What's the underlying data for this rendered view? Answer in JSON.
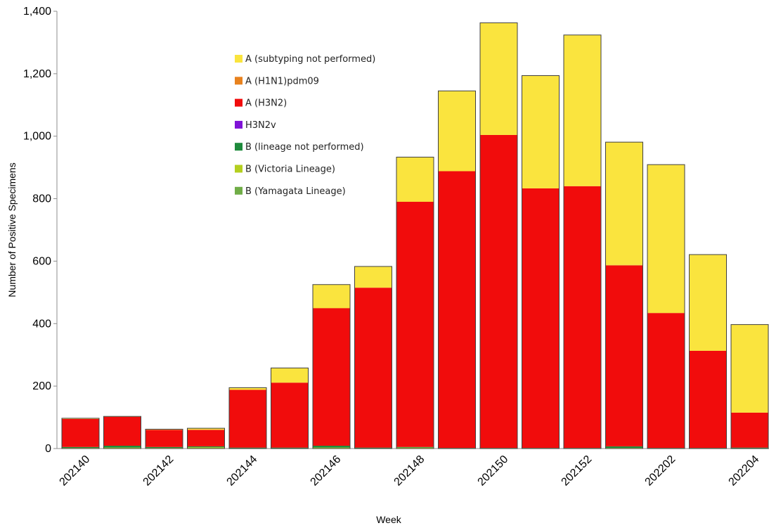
{
  "chart_data": {
    "type": "bar",
    "stacked": true,
    "title": "",
    "xlabel": "Week",
    "ylabel": "Number of Positive Specimens",
    "ylim": [
      0,
      1400
    ],
    "yticks": [
      "0",
      "200",
      "400",
      "600",
      "800",
      "1,000",
      "1,200",
      "1,400"
    ],
    "grid": false,
    "legend_position": "top-left inside plot",
    "categories": [
      "202140",
      "202141",
      "202142",
      "202143",
      "202144",
      "202145",
      "202146",
      "202147",
      "202148",
      "202149",
      "202150",
      "202151",
      "202152",
      "202201",
      "202202",
      "202203",
      "202204"
    ],
    "x_tick_labels": [
      "202140",
      "",
      "202142",
      "",
      "202144",
      "",
      "202146",
      "",
      "202148",
      "",
      "202150",
      "",
      "202152",
      "",
      "202202",
      "",
      "202204"
    ],
    "series": [
      {
        "name": "B (Yamagata Lineage)",
        "color": "#70AD47",
        "values": [
          0,
          0,
          0,
          0,
          0,
          0,
          0,
          0,
          0,
          0,
          0,
          0,
          0,
          0,
          0,
          0,
          0
        ]
      },
      {
        "name": "B (Victoria Lineage)",
        "color": "#B4CF1F",
        "values": [
          2,
          3,
          2,
          4,
          1,
          1,
          3,
          1,
          3,
          1,
          1,
          1,
          1,
          2,
          1,
          1,
          1
        ]
      },
      {
        "name": "B (lineage not performed)",
        "color": "#1E8A3C",
        "values": [
          3,
          6,
          3,
          3,
          2,
          2,
          6,
          2,
          2,
          1,
          1,
          1,
          1,
          5,
          1,
          1,
          2
        ]
      },
      {
        "name": "H3N2v",
        "color": "#7F12D6",
        "values": [
          0,
          0,
          0,
          0,
          0,
          0,
          0,
          0,
          0,
          0,
          0,
          0,
          0,
          0,
          0,
          0,
          0
        ]
      },
      {
        "name": "A (H3N2)",
        "color": "#F10C0C",
        "values": [
          90,
          93,
          55,
          53,
          185,
          208,
          440,
          512,
          785,
          886,
          1002,
          831,
          838,
          579,
          432,
          311,
          112
        ]
      },
      {
        "name": "A (H1N1)pdm09",
        "color": "#E8821E",
        "values": [
          0,
          0,
          0,
          0,
          0,
          0,
          1,
          0,
          0,
          0,
          0,
          0,
          0,
          2,
          0,
          0,
          0
        ]
      },
      {
        "name": "A (subtyping not performed)",
        "color": "#FAE43E",
        "values": [
          2,
          1,
          2,
          5,
          7,
          47,
          75,
          68,
          143,
          257,
          359,
          361,
          484,
          393,
          475,
          308,
          282
        ]
      }
    ],
    "legend_order": [
      "A (subtyping not performed)",
      "A (H1N1)pdm09",
      "A (H3N2)",
      "H3N2v",
      "B (lineage not performed)",
      "B (Victoria Lineage)",
      "B (Yamagata Lineage)"
    ]
  }
}
